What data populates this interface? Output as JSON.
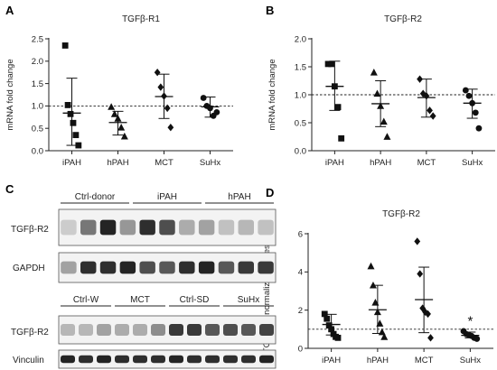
{
  "panels": {
    "A": {
      "letter": "A"
    },
    "B": {
      "letter": "B"
    },
    "C": {
      "letter": "C"
    },
    "D": {
      "letter": "D"
    }
  },
  "chart_data": [
    {
      "id": "A",
      "type": "scatter",
      "title": "TGFβ-R1",
      "ylabel": "mRNA fold change",
      "categories": [
        "iPAH",
        "hPAH",
        "MCT",
        "SuHx"
      ],
      "ylim": [
        0,
        2.5
      ],
      "yticks": [
        "0.0",
        "0.5",
        "1.0",
        "1.5",
        "2.0",
        "2.5"
      ],
      "reference_line": 1.0,
      "groups": [
        {
          "name": "iPAH",
          "marker": "square",
          "points": [
            2.35,
            1.02,
            0.82,
            0.62,
            0.35,
            0.12
          ],
          "mean": 0.84,
          "sd_low": 0.12,
          "sd_high": 1.62
        },
        {
          "name": "hPAH",
          "marker": "triangle",
          "points": [
            0.98,
            0.82,
            0.72,
            0.52,
            0.32
          ],
          "mean": 0.63,
          "sd_low": 0.35,
          "sd_high": 0.88
        },
        {
          "name": "MCT",
          "marker": "diamond",
          "points": [
            1.75,
            1.42,
            1.22,
            0.95,
            0.52
          ],
          "mean": 1.21,
          "sd_low": 0.72,
          "sd_high": 1.71
        },
        {
          "name": "SuHx",
          "marker": "circle",
          "points": [
            1.18,
            1.0,
            0.95,
            0.78,
            0.86
          ],
          "mean": 0.98,
          "sd_low": 0.75,
          "sd_high": 1.2
        }
      ]
    },
    {
      "id": "B",
      "type": "scatter",
      "title": "TGFβ-R2",
      "ylabel": "mRNA fold change",
      "categories": [
        "iPAH",
        "hPAH",
        "MCT",
        "SuHx"
      ],
      "ylim": [
        0,
        2.0
      ],
      "yticks": [
        "0.0",
        "0.5",
        "1.0",
        "1.5",
        "2.0"
      ],
      "reference_line": 1.0,
      "groups": [
        {
          "name": "iPAH",
          "marker": "square",
          "points": [
            1.55,
            1.55,
            1.15,
            0.78,
            0.22
          ],
          "mean": 1.15,
          "sd_low": 0.72,
          "sd_high": 1.6
        },
        {
          "name": "hPAH",
          "marker": "triangle",
          "points": [
            1.4,
            1.02,
            0.8,
            0.52,
            0.25
          ],
          "mean": 0.84,
          "sd_low": 0.43,
          "sd_high": 1.25
        },
        {
          "name": "MCT",
          "marker": "diamond",
          "points": [
            1.28,
            1.02,
            0.98,
            0.72,
            0.62
          ],
          "mean": 0.95,
          "sd_low": 0.6,
          "sd_high": 1.28
        },
        {
          "name": "SuHx",
          "marker": "circle",
          "points": [
            1.08,
            0.98,
            0.85,
            0.68,
            0.4
          ],
          "mean": 0.85,
          "sd_low": 0.58,
          "sd_high": 1.1
        }
      ]
    },
    {
      "id": "D",
      "type": "scatter",
      "title": "TGFβ-R2",
      "ylabel": "TGFβ-R2 normalized expression",
      "categories": [
        "iPAH",
        "hPAH",
        "MCT",
        "SuHx"
      ],
      "ylim": [
        0,
        6
      ],
      "yticks": [
        "0",
        "2",
        "4",
        "6"
      ],
      "reference_line": 1.0,
      "annotation": {
        "text": "*",
        "group": "SuHx",
        "y": 1.5
      },
      "groups": [
        {
          "name": "iPAH",
          "marker": "square",
          "points": [
            1.8,
            1.55,
            1.2,
            1.0,
            0.75,
            0.6,
            0.55
          ],
          "mean": 1.25,
          "sd_low": 0.7,
          "sd_high": 1.78
        },
        {
          "name": "hPAH",
          "marker": "triangle",
          "points": [
            4.3,
            3.3,
            2.4,
            1.9,
            1.3,
            0.85,
            0.6
          ],
          "mean": 2.02,
          "sd_low": 0.78,
          "sd_high": 3.3
        },
        {
          "name": "MCT",
          "marker": "diamond",
          "points": [
            5.6,
            3.9,
            2.1,
            1.9,
            1.8,
            0.55
          ],
          "mean": 2.55,
          "sd_low": 0.82,
          "sd_high": 4.25
        },
        {
          "name": "SuHx",
          "marker": "circle",
          "points": [
            0.9,
            0.75,
            0.7,
            0.65,
            0.55,
            0.5
          ],
          "mean": 0.68,
          "sd_low": 0.55,
          "sd_high": 0.85
        }
      ]
    }
  ],
  "blots": {
    "upper": {
      "groups": [
        "Ctrl-donor",
        "iPAH",
        "hPAH"
      ],
      "rows": [
        {
          "label": "TGFβ-R2",
          "intensities": [
            0.15,
            0.55,
            0.95,
            0.4,
            0.9,
            0.75,
            0.3,
            0.35,
            0.2,
            0.25,
            0.2
          ]
        },
        {
          "label": "GAPDH",
          "intensities": [
            0.35,
            0.9,
            0.9,
            0.95,
            0.75,
            0.7,
            0.9,
            0.95,
            0.7,
            0.85,
            0.85
          ]
        }
      ]
    },
    "lower": {
      "groups": [
        "Ctrl-W",
        "MCT",
        "Ctrl-SD",
        "SuHx"
      ],
      "rows": [
        {
          "label": "TGFβ-R2",
          "intensities": [
            0.25,
            0.25,
            0.35,
            0.3,
            0.3,
            0.45,
            0.85,
            0.85,
            0.7,
            0.75,
            0.7,
            0.8
          ]
        },
        {
          "label": "Vinculin",
          "intensities": [
            0.95,
            0.9,
            0.95,
            0.9,
            0.9,
            0.9,
            0.95,
            0.9,
            0.9,
            0.9,
            0.9,
            0.95
          ]
        }
      ]
    }
  }
}
